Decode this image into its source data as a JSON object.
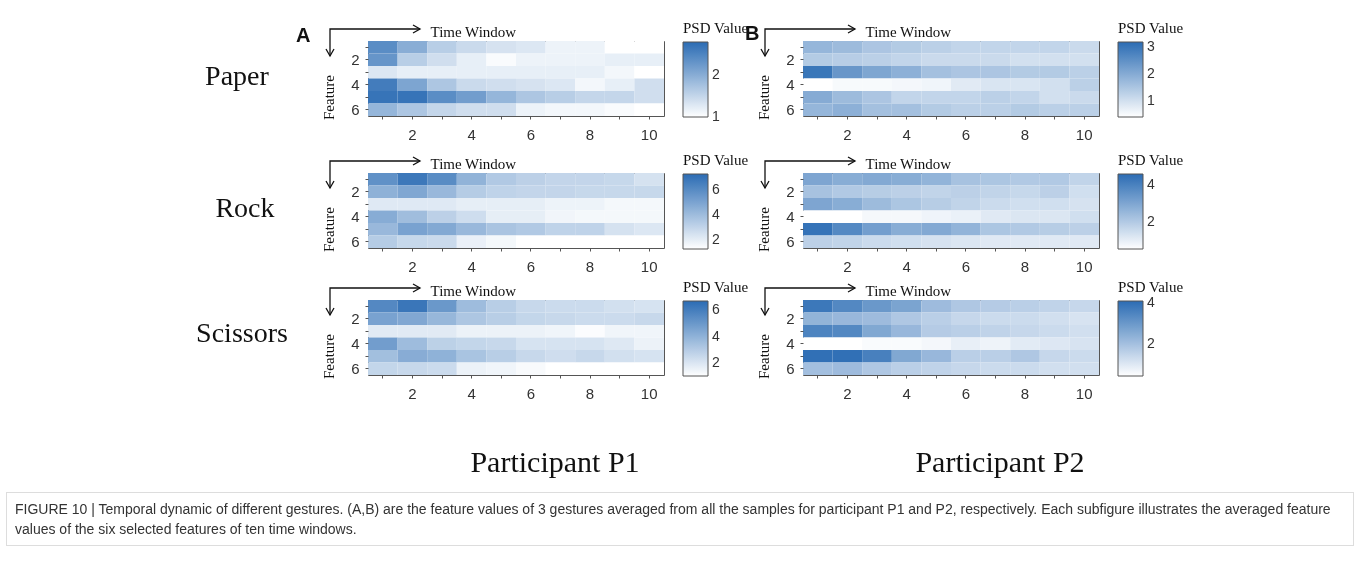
{
  "chart_data": [
    {
      "type": "heatmap",
      "xlabel": "Time Window",
      "ylabel": "Feature",
      "clabel": "PSD Value",
      "annotations": [
        "A",
        "Paper"
      ],
      "categories": [
        null,
        "2",
        null,
        "4",
        null,
        "6",
        null,
        "8",
        null,
        "10"
      ],
      "y_categories": [
        null,
        "2",
        null,
        "4",
        null,
        "6"
      ],
      "cells": [
        [
          2.4,
          2.0,
          1.6,
          1.45,
          1.35,
          1.3,
          1.15,
          1.15,
          1.0,
          1.0
        ],
        [
          2.3,
          1.6,
          1.4,
          1.2,
          1.05,
          1.15,
          1.15,
          1.15,
          1.2,
          1.2
        ],
        [
          1.3,
          1.2,
          1.2,
          1.2,
          1.2,
          1.2,
          1.2,
          1.2,
          1.1,
          1.0
        ],
        [
          2.6,
          2.1,
          1.7,
          1.45,
          1.4,
          1.35,
          1.3,
          1.1,
          1.2,
          1.4
        ],
        [
          2.7,
          2.7,
          2.4,
          2.2,
          1.9,
          1.7,
          1.6,
          1.5,
          1.5,
          1.4
        ],
        [
          1.9,
          1.7,
          1.5,
          1.4,
          1.4,
          1.15,
          1.1,
          1.1,
          1.05,
          1.0
        ]
      ],
      "clim": [
        1,
        2.8
      ],
      "cticks": [
        1,
        2
      ]
    },
    {
      "type": "heatmap",
      "xlabel": "Time Window",
      "ylabel": "Feature",
      "clabel": "PSD Value",
      "annotations": [
        "B"
      ],
      "categories": [
        null,
        "2",
        null,
        "4",
        null,
        "6",
        null,
        "8",
        null,
        "10"
      ],
      "y_categories": [
        null,
        "2",
        null,
        "4",
        null,
        "6"
      ],
      "cells": [
        [
          1.8,
          1.7,
          1.5,
          1.4,
          1.3,
          1.2,
          1.2,
          1.2,
          1.2,
          1.1
        ],
        [
          1.4,
          1.35,
          1.3,
          1.2,
          1.1,
          1.1,
          1.1,
          1.0,
          1.0,
          1.0
        ],
        [
          3.0,
          2.4,
          2.1,
          1.9,
          1.6,
          1.5,
          1.5,
          1.4,
          1.4,
          1.3
        ],
        [
          0.4,
          0.5,
          0.5,
          0.55,
          0.6,
          0.8,
          0.9,
          0.9,
          1.0,
          1.3
        ],
        [
          2.0,
          1.7,
          1.5,
          1.2,
          1.2,
          1.2,
          1.3,
          1.2,
          1.0,
          1.1
        ],
        [
          1.8,
          1.9,
          1.6,
          1.6,
          1.4,
          1.3,
          1.3,
          1.4,
          1.3,
          1.3
        ]
      ],
      "clim": [
        0.4,
        3.2
      ],
      "cticks": [
        1,
        2,
        3
      ]
    },
    {
      "type": "heatmap",
      "xlabel": "Time Window",
      "ylabel": "Feature",
      "clabel": "PSD Value",
      "annotations": [
        "Rock"
      ],
      "categories": [
        null,
        "2",
        null,
        "4",
        null,
        "6",
        null,
        "8",
        null,
        "10"
      ],
      "y_categories": [
        null,
        "2",
        null,
        "4",
        null,
        "6"
      ],
      "cells": [
        [
          5.8,
          6.8,
          6.0,
          4.4,
          3.5,
          3.2,
          3.0,
          3.0,
          2.9,
          2.5
        ],
        [
          4.5,
          4.9,
          4.2,
          3.4,
          3.1,
          3.0,
          3.0,
          2.9,
          2.9,
          2.9
        ],
        [
          2.2,
          2.2,
          2.2,
          2.0,
          2.0,
          2.0,
          1.8,
          1.8,
          1.6,
          1.6
        ],
        [
          4.7,
          4.0,
          3.2,
          2.7,
          2.0,
          2.0,
          1.7,
          1.6,
          1.6,
          1.6
        ],
        [
          4.2,
          5.1,
          4.8,
          4.2,
          3.7,
          3.5,
          3.1,
          3.1,
          2.5,
          2.3
        ],
        [
          3.4,
          2.9,
          2.8,
          1.9,
          1.6,
          1.3,
          1.3,
          1.3,
          1.3,
          1.3
        ]
      ],
      "clim": [
        1.3,
        7.3
      ],
      "cticks": [
        2,
        4,
        6
      ]
    },
    {
      "type": "heatmap",
      "xlabel": "Time Window",
      "ylabel": "Feature",
      "clabel": "PSD Value",
      "categories": [
        null,
        "2",
        null,
        "4",
        null,
        "6",
        null,
        "8",
        null,
        "10"
      ],
      "y_categories": [
        null,
        "2",
        null,
        "4",
        null,
        "6"
      ],
      "cells": [
        [
          3.0,
          2.8,
          2.9,
          2.8,
          2.6,
          2.2,
          2.1,
          2.0,
          2.0,
          1.7
        ],
        [
          2.2,
          2.0,
          1.9,
          1.8,
          1.7,
          1.8,
          1.7,
          1.6,
          1.8,
          1.4
        ],
        [
          3.0,
          2.8,
          2.4,
          2.1,
          1.9,
          1.7,
          1.5,
          1.4,
          1.4,
          1.3
        ],
        [
          0.5,
          0.5,
          0.7,
          0.7,
          0.8,
          0.9,
          1.1,
          1.2,
          1.2,
          1.4
        ],
        [
          4.4,
          3.8,
          3.2,
          2.8,
          2.9,
          2.6,
          2.1,
          2.0,
          1.9,
          1.8
        ],
        [
          1.8,
          1.7,
          1.5,
          1.4,
          1.3,
          1.2,
          1.1,
          1.1,
          1.1,
          1.1
        ]
      ],
      "clim": [
        0.5,
        4.6
      ],
      "cticks": [
        2,
        4
      ]
    },
    {
      "type": "heatmap",
      "xlabel": "Time Window",
      "ylabel": "Feature",
      "clabel": "PSD Value",
      "annotations": [
        "Scissors",
        "Participant P1"
      ],
      "categories": [
        null,
        "2",
        null,
        "4",
        null,
        "6",
        null,
        "8",
        null,
        "10"
      ],
      "y_categories": [
        null,
        "2",
        null,
        "4",
        null,
        "6"
      ],
      "cells": [
        [
          5.6,
          6.3,
          5.0,
          3.6,
          2.9,
          2.5,
          2.4,
          2.4,
          2.2,
          2.1
        ],
        [
          4.6,
          4.4,
          3.8,
          3.2,
          2.9,
          2.6,
          2.5,
          2.4,
          2.4,
          2.5
        ],
        [
          1.8,
          1.8,
          1.8,
          1.5,
          1.5,
          1.5,
          1.4,
          1.1,
          1.4,
          1.4
        ],
        [
          4.8,
          3.6,
          2.8,
          2.6,
          2.5,
          2.1,
          2.1,
          2.1,
          1.9,
          1.5
        ],
        [
          3.5,
          4.2,
          4.0,
          3.3,
          2.9,
          2.5,
          2.3,
          2.5,
          2.2,
          2.1
        ],
        [
          2.6,
          2.5,
          2.4,
          1.5,
          1.4,
          1.2,
          1.0,
          1.0,
          1.0,
          1.0
        ]
      ],
      "clim": [
        1,
        6.7
      ],
      "cticks": [
        2,
        4,
        6
      ]
    },
    {
      "type": "heatmap",
      "xlabel": "Time Window",
      "ylabel": "Feature",
      "clabel": "PSD Value",
      "annotations": [
        "Participant P2",
        "FIGURE 10 | Temporal dynamic of different gestures. (A,B) are the feature values of 3 gestures averaged from all the samples for participant P1 and P2, respectively. Each subfigure illustrates the averaged feature values of the six selected features of ten time windows."
      ],
      "categories": [
        null,
        "2",
        null,
        "4",
        null,
        "6",
        null,
        "8",
        null,
        "10"
      ],
      "y_categories": [
        null,
        "2",
        null,
        "4",
        null,
        "6"
      ],
      "cells": [
        [
          3.8,
          3.4,
          3.0,
          2.7,
          2.1,
          1.8,
          1.7,
          1.6,
          1.5,
          1.4
        ],
        [
          2.3,
          2.2,
          2.1,
          1.8,
          1.6,
          1.4,
          1.3,
          1.3,
          1.2,
          1.1
        ],
        [
          3.5,
          3.4,
          2.6,
          2.2,
          1.7,
          1.6,
          1.5,
          1.4,
          1.3,
          1.2
        ],
        [
          0.4,
          0.4,
          0.5,
          0.5,
          0.6,
          0.8,
          0.7,
          0.9,
          1.0,
          1.1
        ],
        [
          4.0,
          4.0,
          3.6,
          2.6,
          2.2,
          1.6,
          1.6,
          1.8,
          1.4,
          1.3
        ],
        [
          2.0,
          2.1,
          1.8,
          1.6,
          1.5,
          1.4,
          1.3,
          1.3,
          1.2,
          1.2
        ]
      ],
      "clim": [
        0.4,
        4.1
      ],
      "cticks": [
        2,
        4
      ]
    }
  ]
}
